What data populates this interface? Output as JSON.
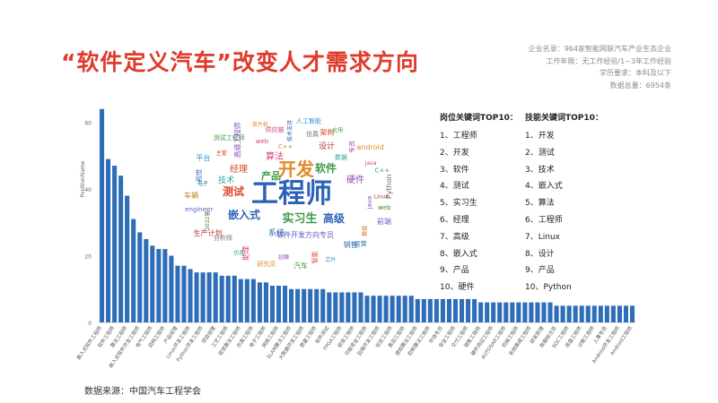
{
  "title": "“软件定义汽车”改变人才需求方向",
  "meta": {
    "line1": "企业名录：964家智能网联汽车产业生态企业",
    "line2": "工作年限：无工作经验/1~3年工作经验",
    "line3": "学历要求：本科及以下",
    "line4": "数据总量：6954条"
  },
  "wordcloud": {
    "words": [
      "工程师",
      "开发",
      "软件",
      "测试",
      "嵌入式",
      "实习生",
      "高级",
      "经理",
      "产品",
      "硬件",
      "技术",
      "算法",
      "系统",
      "设计",
      "软件开发方向专员",
      "技术支持",
      "人工智能",
      "架构",
      "应用",
      "专员",
      "android",
      "java",
      "C++",
      "Python",
      "Linux",
      "web",
      "前端",
      "数据",
      "运营",
      "销售",
      "芯片",
      "智能",
      "汽车",
      "招聘",
      "研究员",
      "助理",
      "仿真",
      "分析师",
      "生产计划",
      "2022届",
      "engineer",
      "车辆",
      "电子",
      "视觉",
      "平台",
      "主管",
      "测试工程师",
      "高级工程师",
      "单片机",
      "供应链"
    ],
    "colors": [
      "#2b62b8",
      "#3b8fd0",
      "#d9472b",
      "#3f9a4a",
      "#8a4fb5",
      "#e08a2a",
      "#d23f7a",
      "#2aa6a0",
      "#6e6e6e",
      "#b23a3a",
      "#4a7c2f",
      "#5a5fc8",
      "#c07b18",
      "#1f6f9e"
    ]
  },
  "lists": {
    "position": {
      "heading": "岗位关键词TOP10：",
      "items": [
        "1、工程师",
        "2、开发",
        "3、软件",
        "4、测试",
        "5、实习生",
        "6、经理",
        "7、高级",
        "8、嵌入式",
        "9、产品",
        "10、硬件"
      ]
    },
    "skill": {
      "heading": "技能关键词TOP10：",
      "items": [
        "1、开发",
        "2、测试",
        "3、技术",
        "4、嵌入式",
        "5、算法",
        "6、工程师",
        "7、Linux",
        "8、设计",
        "9、产品",
        "10、Python"
      ]
    }
  },
  "source": "数据来源：中国汽车工程学会",
  "colors": {
    "title": "#e03a2a",
    "bar": "#2e6db7",
    "axis": "#cccccc",
    "tick": "#666666"
  },
  "chart_data": {
    "type": "bar",
    "ylabel": "PositionName",
    "ylim": [
      0,
      65
    ],
    "yticks": [
      0,
      20,
      40,
      60
    ],
    "categories": [
      "嵌入式软件工程师",
      "测试工程师",
      "软件工程师",
      "嵌入式开发工程师",
      "算法工程师",
      "Java开发工程师",
      "嵌入式软件开发工程师",
      "硬件工程师",
      "电气工程师",
      "前端开发工程师",
      "结构工程师",
      "C++软件工程师",
      "产品经理",
      "软件测试工程师",
      "Linux开发工程师",
      "web前端开发工程师",
      "Python开发工程师",
      "测试开发工程师",
      "项目经理",
      "售前工程师",
      "工艺工程师",
      "技术支持工程师",
      "视觉算法工程师",
      "系统工程师",
      "仿真工程师",
      "自动驾驶工程师",
      "电子工程师",
      "软件开发工程师",
      "网络工程师",
      "固件工程师",
      "SLAM算法工程师",
      "驱动开发工程师",
      "大数据开发工程师",
      "运维工程师",
      "质量工程师",
      "数据分析师",
      "软件测试",
      "实施工程师",
      "FPGA工程师",
      "图像算法工程师",
      "研发工程师",
      "技术专员",
      "功能安全工程师",
      "C++开发工程师",
      "后端开发工程师",
      "机器学习工程师",
      "标定工程师",
      "嵌入式工程师",
      "售后工程师",
      "规划算法工程师",
      "感知算法工程师",
      "车载软件工程师",
      "控制算法工程师",
      "测试专员",
      "市场专员",
      "调试工程师",
      "安全工程师",
      "产品助理",
      "交付工程师",
      "测试主管",
      "销售工程师",
      "技术员",
      "硬件测试工程师",
      "电池工程师",
      "AUTOSAR工程师",
      "硬件开发工程师",
      "机械工程师",
      "运营专员",
      "系统集成工程师",
      "开发工程师",
      "研发助理",
      "高级算法工程师",
      "数据标注员",
      "客户经理",
      "SOC工程师",
      "芯片验证工程师",
      "底盘工程师",
      "测试经理",
      "诊断工程师",
      "工程助理",
      "人事专员",
      "信号处理工程师",
      "Android开发工程师",
      "IT运维工程师",
      "Android工程师"
    ],
    "values": [
      64,
      49,
      47,
      44,
      38,
      31,
      27,
      25,
      23,
      22,
      22,
      20,
      17,
      17,
      16,
      15,
      15,
      15,
      15,
      14,
      14,
      14,
      13,
      13,
      13,
      12,
      12,
      11,
      11,
      11,
      10,
      10,
      10,
      10,
      10,
      10,
      9,
      9,
      9,
      9,
      9,
      9,
      8,
      8,
      8,
      8,
      8,
      8,
      8,
      8,
      7,
      7,
      7,
      7,
      7,
      7,
      7,
      7,
      7,
      7,
      6,
      6,
      6,
      6,
      6,
      6,
      6,
      6,
      6,
      6,
      6,
      6,
      5,
      5,
      5,
      5,
      5,
      5,
      5,
      5,
      5,
      5,
      5,
      5,
      5
    ]
  }
}
